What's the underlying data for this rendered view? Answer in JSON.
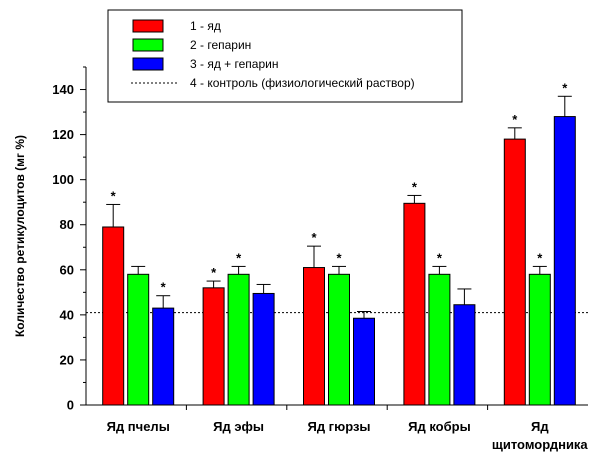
{
  "chart_data": {
    "type": "bar",
    "ylabel": "Количество ретикулоцитов (мг %)",
    "xlabel": "",
    "ylim": [
      0,
      150
    ],
    "yticks": [
      0,
      20,
      40,
      60,
      80,
      100,
      120,
      140
    ],
    "categories": [
      [
        "Яд пчелы"
      ],
      [
        "Яд эфы"
      ],
      [
        "Яд гюрзы"
      ],
      [
        "Яд кобры"
      ],
      [
        "Яд",
        "щитомордника"
      ]
    ],
    "series": [
      {
        "name": "1 - яд",
        "color": "#ff0000",
        "values": [
          79,
          52,
          61,
          89.5,
          118
        ],
        "errors": [
          10,
          3,
          9.5,
          3.5,
          5
        ],
        "significant": [
          true,
          true,
          true,
          true,
          true
        ]
      },
      {
        "name": "2 - гепарин",
        "color": "#00ff00",
        "values": [
          58,
          58,
          58,
          58,
          58
        ],
        "errors": [
          3.5,
          3.5,
          3.5,
          3.5,
          3.5
        ],
        "significant": [
          false,
          true,
          true,
          true,
          true
        ]
      },
      {
        "name": "3 - яд + гепарин",
        "color": "#0000ff",
        "values": [
          43,
          49.5,
          38.5,
          44.5,
          128
        ],
        "errors": [
          5.5,
          4,
          3,
          7,
          9
        ],
        "significant": [
          true,
          false,
          false,
          false,
          true
        ]
      }
    ],
    "reference_line": {
      "name": "4 - контроль (физиологический раствор)",
      "value": 41,
      "style": "dotted"
    },
    "significance_marker": "*",
    "legend_position": "top",
    "grid": false
  }
}
